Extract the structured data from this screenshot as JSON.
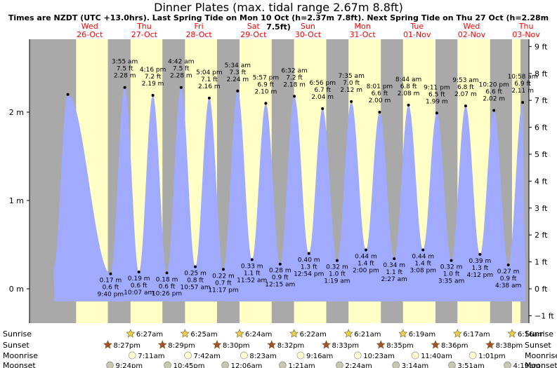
{
  "title": "Dinner Plates (max. tidal range 2.67m 8.8ft)",
  "subtitle": "Times are NZDT (UTC +13.0hrs). Last Spring Tide on Mon 10 Oct (h=2.37m 7.8ft). Next Spring Tide on Thu 27 Oct (h=2.28m 7.5ft)",
  "colors": {
    "day": "#ffffc6",
    "night": "#a9a9a9",
    "tide": "#a0aaff",
    "date_label": "#ff0000",
    "star": "#b88838",
    "moon": "#fffbd0"
  },
  "chart_data": {
    "type": "area",
    "title": "Dinner Plates (max. tidal range 2.67m 8.8ft)",
    "left_axis": {
      "unit": "m",
      "ticks": [
        "0 m",
        "1 m",
        "2 m"
      ],
      "values": [
        0,
        1,
        2
      ]
    },
    "right_axis": {
      "unit": "ft",
      "ticks": [
        "−1 ft",
        "0 ft",
        "1 ft",
        "2 ft",
        "3 ft",
        "4 ft",
        "5 ft",
        "6 ft",
        "7 ft",
        "8 ft",
        "9 ft"
      ],
      "values": [
        -1,
        0,
        1,
        2,
        3,
        4,
        5,
        6,
        7,
        8,
        9
      ]
    },
    "ylim_m": [
      -0.21,
      2.74
    ],
    "xlim_hours": [
      -14,
      202
    ],
    "x_origin": "Wed 26-Oct 00:00",
    "days": [
      {
        "dow": "Wed",
        "date": "26-Oct"
      },
      {
        "dow": "Thu",
        "date": "27-Oct"
      },
      {
        "dow": "Fri",
        "date": "28-Oct"
      },
      {
        "dow": "Sat",
        "date": "29-Oct"
      },
      {
        "dow": "Sun",
        "date": "30-Oct"
      },
      {
        "dow": "Mon",
        "date": "31-Oct"
      },
      {
        "dow": "Tue",
        "date": "01-Nov"
      },
      {
        "dow": "Wed",
        "date": "02-Nov"
      },
      {
        "dow": "Thu",
        "date": "03-Nov"
      }
    ],
    "nights": [
      [
        -14,
        6.5
      ],
      [
        20.47,
        30.45
      ],
      [
        44.48,
        54.42
      ],
      [
        68.5,
        78.4
      ],
      [
        92.53,
        102.37
      ],
      [
        116.55,
        126.35
      ],
      [
        140.58,
        150.32
      ],
      [
        164.6,
        174.28
      ],
      [
        188.63,
        198.27
      ]
    ],
    "extremes": [
      {
        "t": 2.87,
        "m": 2.2,
        "kind": "high",
        "labels": []
      },
      {
        "t": 21.67,
        "m": 0.17,
        "kind": "low",
        "labels": [
          "0.17 m",
          "0.6 ft",
          "9:40 pm"
        ]
      },
      {
        "t": 27.92,
        "m": 2.28,
        "kind": "high",
        "labels": [
          "3:55 am",
          "7.5 ft",
          "2.28 m"
        ]
      },
      {
        "t": 34.12,
        "m": 0.19,
        "kind": "low",
        "labels": [
          "0.19 m",
          "0.6 ft",
          "10:07 am"
        ]
      },
      {
        "t": 40.27,
        "m": 2.19,
        "kind": "high",
        "labels": [
          "4:16 pm",
          "7.2 ft",
          "2.19 m"
        ]
      },
      {
        "t": 46.43,
        "m": 0.18,
        "kind": "low",
        "labels": [
          "0.18 m",
          "0.6 ft",
          "10:26 pm"
        ]
      },
      {
        "t": 52.7,
        "m": 2.28,
        "kind": "high",
        "labels": [
          "4:42 am",
          "7.5 ft",
          "2.28 m"
        ]
      },
      {
        "t": 58.95,
        "m": 0.25,
        "kind": "low",
        "labels": [
          "0.25 m",
          "0.8 ft",
          "10:57 am"
        ]
      },
      {
        "t": 65.07,
        "m": 2.16,
        "kind": "high",
        "labels": [
          "5:04 pm",
          "7.1 ft",
          "2.16 m"
        ]
      },
      {
        "t": 71.28,
        "m": 0.22,
        "kind": "low",
        "labels": [
          "0.22 m",
          "0.7 ft",
          "11:17 pm"
        ]
      },
      {
        "t": 77.57,
        "m": 2.24,
        "kind": "high",
        "labels": [
          "5:34 am",
          "7.3 ft",
          "2.24 m"
        ]
      },
      {
        "t": 83.87,
        "m": 0.33,
        "kind": "low",
        "labels": [
          "0.33 m",
          "1.1 ft",
          "11:52 am"
        ]
      },
      {
        "t": 89.95,
        "m": 2.1,
        "kind": "high",
        "labels": [
          "5:57 pm",
          "6.9 ft",
          "2.10 m"
        ]
      },
      {
        "t": 96.25,
        "m": 0.28,
        "kind": "low",
        "labels": [
          "0.28 m",
          "0.9 ft",
          "12:15 am"
        ]
      },
      {
        "t": 102.53,
        "m": 2.18,
        "kind": "high",
        "labels": [
          "6:32 am",
          "7.2 ft",
          "2.18 m"
        ]
      },
      {
        "t": 108.9,
        "m": 0.4,
        "kind": "low",
        "labels": [
          "0.40 m",
          "1.3 ft",
          "12:54 pm"
        ]
      },
      {
        "t": 114.93,
        "m": 2.04,
        "kind": "high",
        "labels": [
          "6:56 pm",
          "6.7 ft",
          "2.04 m"
        ]
      },
      {
        "t": 121.32,
        "m": 0.32,
        "kind": "low",
        "labels": [
          "0.32 m",
          "1.0 ft",
          "1:19 am"
        ]
      },
      {
        "t": 127.58,
        "m": 2.12,
        "kind": "high",
        "labels": [
          "7:35 am",
          "7.0 ft",
          "2.12 m"
        ]
      },
      {
        "t": 134.0,
        "m": 0.44,
        "kind": "low",
        "labels": [
          "0.44 m",
          "1.4 ft",
          "2:00 pm"
        ]
      },
      {
        "t": 140.02,
        "m": 2.0,
        "kind": "high",
        "labels": [
          "8:01 pm",
          "6.6 ft",
          "2.00 m"
        ]
      },
      {
        "t": 146.45,
        "m": 0.34,
        "kind": "low",
        "labels": [
          "0.34 m",
          "1.1 ft",
          "2:27 am"
        ]
      },
      {
        "t": 152.73,
        "m": 2.08,
        "kind": "high",
        "labels": [
          "8:44 am",
          "6.8 ft",
          "2.08 m"
        ]
      },
      {
        "t": 159.13,
        "m": 0.44,
        "kind": "low",
        "labels": [
          "0.44 m",
          "1.4 ft",
          "3:08 pm"
        ]
      },
      {
        "t": 165.18,
        "m": 1.99,
        "kind": "high",
        "labels": [
          "9:11 pm",
          "6.5 ft",
          "1.99 m"
        ]
      },
      {
        "t": 171.58,
        "m": 0.32,
        "kind": "low",
        "labels": [
          "0.32 m",
          "1.0 ft",
          "3:35 am"
        ]
      },
      {
        "t": 177.88,
        "m": 2.07,
        "kind": "high",
        "labels": [
          "9:53 am",
          "6.8 ft",
          "2.07 m"
        ]
      },
      {
        "t": 184.2,
        "m": 0.39,
        "kind": "low",
        "labels": [
          "0.39 m",
          "1.3 ft",
          "4:12 pm"
        ]
      },
      {
        "t": 190.33,
        "m": 2.02,
        "kind": "high",
        "labels": [
          "10:20 pm",
          "6.6 ft",
          "2.02 m"
        ]
      },
      {
        "t": 196.63,
        "m": 0.27,
        "kind": "low",
        "labels": [
          "0.27 m",
          "0.9 ft",
          "4:38 am"
        ]
      },
      {
        "t": 202.97,
        "m": 2.11,
        "kind": "high",
        "labels": [
          "10:58 am",
          "6.9 ft",
          "2.11 m"
        ]
      }
    ],
    "astro_rows": [
      {
        "name": "Sunrise",
        "icon": "sun-icon",
        "events": [
          [
            30.45,
            "6:27am"
          ],
          [
            54.42,
            "6:25am"
          ],
          [
            78.4,
            "6:24am"
          ],
          [
            102.37,
            "6:22am"
          ],
          [
            126.35,
            "6:21am"
          ],
          [
            150.32,
            "6:19am"
          ],
          [
            174.28,
            "6:17am"
          ],
          [
            198.27,
            "6:16am"
          ]
        ]
      },
      {
        "name": "Sunset",
        "icon": "sunset-star-icon",
        "events": [
          [
            20.45,
            "8:27pm"
          ],
          [
            44.48,
            "8:29pm"
          ],
          [
            68.5,
            "8:30pm"
          ],
          [
            92.53,
            "8:32pm"
          ],
          [
            116.55,
            "8:33pm"
          ],
          [
            140.58,
            "8:35pm"
          ],
          [
            164.6,
            "8:36pm"
          ],
          [
            188.63,
            "8:38pm"
          ]
        ]
      },
      {
        "name": "Moonrise",
        "icon": "moon-icon",
        "events": [
          [
            31.18,
            "7:11am"
          ],
          [
            55.7,
            "7:42am"
          ],
          [
            80.38,
            "8:23am"
          ],
          [
            105.27,
            "9:16am"
          ],
          [
            130.38,
            "10:23am"
          ],
          [
            155.67,
            "11:40am"
          ],
          [
            181.02,
            "1:01pm"
          ]
        ]
      },
      {
        "name": "Moonset",
        "icon": "moonset-icon",
        "events": [
          [
            21.4,
            "9:24pm"
          ],
          [
            46.75,
            "10:45pm"
          ],
          [
            72.1,
            "12:06am"
          ],
          [
            97.35,
            "1:21am"
          ],
          [
            122.4,
            "2:24am"
          ],
          [
            147.23,
            "3:14am"
          ],
          [
            171.85,
            "3:51am"
          ],
          [
            196.32,
            "4:19am"
          ]
        ]
      }
    ]
  }
}
